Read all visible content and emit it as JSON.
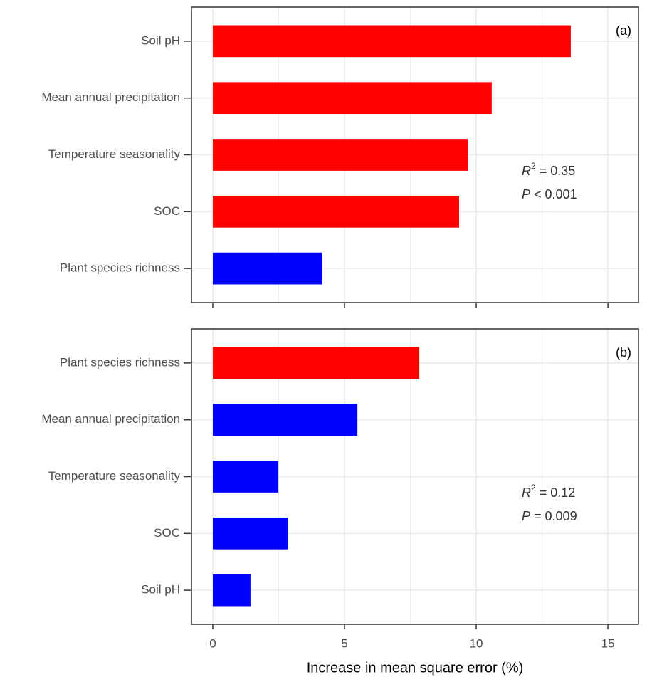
{
  "chart_data": [
    {
      "type": "barh",
      "panel_label": "(a)",
      "categories": [
        "Soil pH",
        "Mean annual precipitation",
        "Temperature seasonality",
        "SOC",
        "Plant species richness"
      ],
      "values": [
        13.59,
        10.59,
        9.68,
        9.35,
        4.14
      ],
      "colors": [
        "#ff0000",
        "#ff0000",
        "#ff0000",
        "#ff0000",
        "#0000ff"
      ],
      "xlim": [
        -0.81,
        16.16
      ],
      "xticks": [
        0,
        5,
        10,
        15
      ],
      "minor_xticks": [
        2.5,
        7.5,
        12.5
      ],
      "show_xtick_labels": false,
      "grid": true,
      "annotation": [
        [
          {
            "text": "R",
            "italic": true
          },
          {
            "text": "2",
            "sup": true
          },
          {
            "text": " = 0.35"
          }
        ],
        [
          {
            "text": "P",
            "italic": true
          },
          {
            "text": " < 0.001"
          }
        ]
      ]
    },
    {
      "type": "barh",
      "panel_label": "(b)",
      "categories": [
        "Plant species richness",
        "Mean annual precipitation",
        "Temperature seasonality",
        "SOC",
        "Soil pH"
      ],
      "values": [
        7.84,
        5.49,
        2.49,
        2.86,
        1.43
      ],
      "colors": [
        "#ff0000",
        "#0000ff",
        "#0000ff",
        "#0000ff",
        "#0000ff"
      ],
      "xlim": [
        -0.81,
        16.16
      ],
      "xticks": [
        0,
        5,
        10,
        15
      ],
      "minor_xticks": [
        2.5,
        7.5,
        12.5
      ],
      "show_xtick_labels": true,
      "grid": true,
      "xlabel": "Increase in mean square error (%)",
      "annotation": [
        [
          {
            "text": "R",
            "italic": true
          },
          {
            "text": "2",
            "sup": true
          },
          {
            "text": " = 0.12"
          }
        ],
        [
          {
            "text": "P",
            "italic": true
          },
          {
            "text": " = 0.009"
          }
        ]
      ]
    }
  ]
}
